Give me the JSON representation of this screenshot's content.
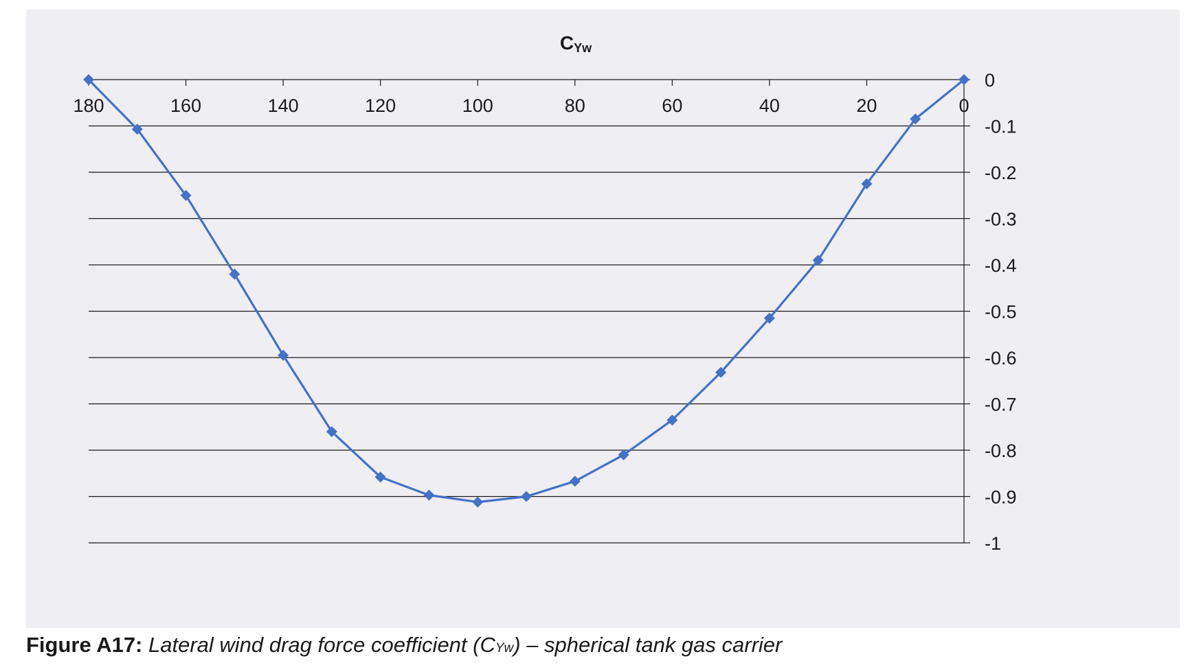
{
  "chart_data": {
    "type": "line",
    "title": "C",
    "title_subscript": "Yw",
    "xlabel": "",
    "ylabel": "",
    "x_reversed": true,
    "xlim": [
      180,
      0
    ],
    "ylim": [
      -1,
      0
    ],
    "x_ticks": [
      180,
      160,
      140,
      120,
      100,
      80,
      60,
      40,
      20,
      0
    ],
    "y_ticks": [
      0,
      -0.1,
      -0.2,
      -0.3,
      -0.4,
      -0.5,
      -0.6,
      -0.7,
      -0.8,
      -0.9,
      -1
    ],
    "x_axis_position": "top",
    "y_axis_position": "right",
    "grid": "horizontal",
    "legend": "none",
    "color": "#4472c4",
    "marker": "diamond",
    "series": [
      {
        "x": [
          180,
          170,
          160,
          150,
          140,
          130,
          120,
          110,
          100,
          90,
          80,
          70,
          60,
          50,
          40,
          30,
          20,
          10,
          0
        ],
        "y": [
          0,
          -0.107,
          -0.25,
          -0.42,
          -0.595,
          -0.76,
          -0.858,
          -0.897,
          -0.912,
          -0.9,
          -0.867,
          -0.81,
          -0.735,
          -0.632,
          -0.515,
          -0.39,
          -0.225,
          -0.085,
          0
        ]
      }
    ]
  },
  "caption": {
    "label": "Figure A17:",
    "text_before": " Lateral wind drag force coefficient (C",
    "subscript": "Yw",
    "text_after": ") – spherical tank gas carrier"
  }
}
